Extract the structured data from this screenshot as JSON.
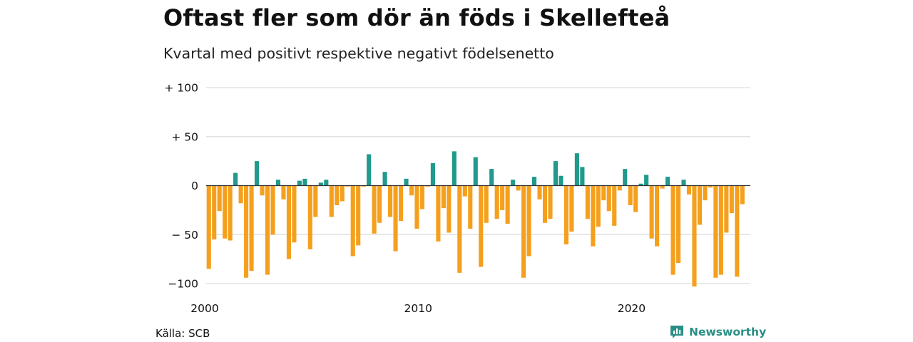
{
  "title": "Oftast fler som dör än föds i Skellefteå",
  "subtitle": "Kvartal med positivt respektive negativt födelsenetto",
  "source": "Källa: SCB",
  "brand": "Newsworthy",
  "colors": {
    "positive": "#1f9a8c",
    "negative": "#f5a01d",
    "grid": "#dddddd",
    "baseline": "#333333",
    "brand": "#2a8f86"
  },
  "chart_data": {
    "type": "bar",
    "xlim": [
      2000,
      2025.5
    ],
    "ylim": [
      -100,
      100
    ],
    "y_ticks": [
      {
        "value": 100,
        "label": "+ 100"
      },
      {
        "value": 50,
        "label": "+  50"
      },
      {
        "value": 0,
        "label": "0"
      },
      {
        "value": -50,
        "label": "− 50"
      },
      {
        "value": -100,
        "label": "−100"
      }
    ],
    "x_ticks": [
      {
        "value": 2000,
        "label": "2000"
      },
      {
        "value": 2010,
        "label": "2010"
      },
      {
        "value": 2020,
        "label": "2020"
      }
    ],
    "series": [
      {
        "x": [
          2000.0,
          2000.25,
          2000.5,
          2000.75,
          2001.0,
          2001.25,
          2001.5,
          2001.75,
          2002.0,
          2002.25,
          2002.5,
          2002.75,
          2003.0,
          2003.25,
          2003.5,
          2003.75,
          2004.0,
          2004.25,
          2004.5,
          2004.75,
          2005.0,
          2005.25,
          2005.5,
          2005.75,
          2006.0,
          2006.25,
          2006.5,
          2006.75,
          2007.0,
          2007.25,
          2007.5,
          2007.75,
          2008.0,
          2008.25,
          2008.5,
          2008.75,
          2009.0,
          2009.25,
          2009.5,
          2009.75,
          2010.0,
          2010.25,
          2010.5,
          2010.75,
          2011.0,
          2011.25,
          2011.5,
          2011.75,
          2012.0,
          2012.25,
          2012.5,
          2012.75,
          2013.0,
          2013.25,
          2013.5,
          2013.75,
          2014.0,
          2014.25,
          2014.5,
          2014.75,
          2015.0,
          2015.25,
          2015.5,
          2015.75,
          2016.0,
          2016.25,
          2016.5,
          2016.75,
          2017.0,
          2017.25,
          2017.5,
          2017.75,
          2018.0,
          2018.25,
          2018.5,
          2018.75,
          2019.0,
          2019.25,
          2019.5,
          2019.75,
          2020.0,
          2020.25,
          2020.5,
          2020.75,
          2021.0,
          2021.25,
          2021.5,
          2021.75,
          2022.0,
          2022.25,
          2022.5,
          2022.75,
          2023.0,
          2023.25,
          2023.5,
          2023.75,
          2024.0,
          2024.25,
          2024.5,
          2024.75,
          2025.0,
          2025.25
        ],
        "values": [
          -85,
          -55,
          -26,
          -54,
          -56,
          13,
          -18,
          -94,
          -87,
          25,
          -10,
          -91,
          -50,
          6,
          -14,
          -75,
          -58,
          5,
          7,
          -65,
          -32,
          3,
          6,
          -32,
          -20,
          -16,
          -1,
          -72,
          -61,
          -1,
          32,
          -49,
          -38,
          14,
          -32,
          -67,
          -36,
          7,
          -10,
          -44,
          -24,
          -1,
          23,
          -57,
          -23,
          -48,
          35,
          -89,
          -11,
          -44,
          29,
          -83,
          -38,
          17,
          -34,
          -25,
          -39,
          6,
          -5,
          -94,
          -72,
          9,
          -14,
          -38,
          -34,
          25,
          10,
          -60,
          -47,
          33,
          19,
          -34,
          -62,
          -42,
          -15,
          -26,
          -41,
          -5,
          17,
          -20,
          -27,
          2,
          11,
          -54,
          -62,
          -3,
          9,
          -91,
          -79,
          6,
          -9,
          -103,
          -40,
          -15,
          -2,
          -94,
          -91,
          -48,
          -28,
          -93,
          -19,
          0
        ]
      }
    ]
  }
}
